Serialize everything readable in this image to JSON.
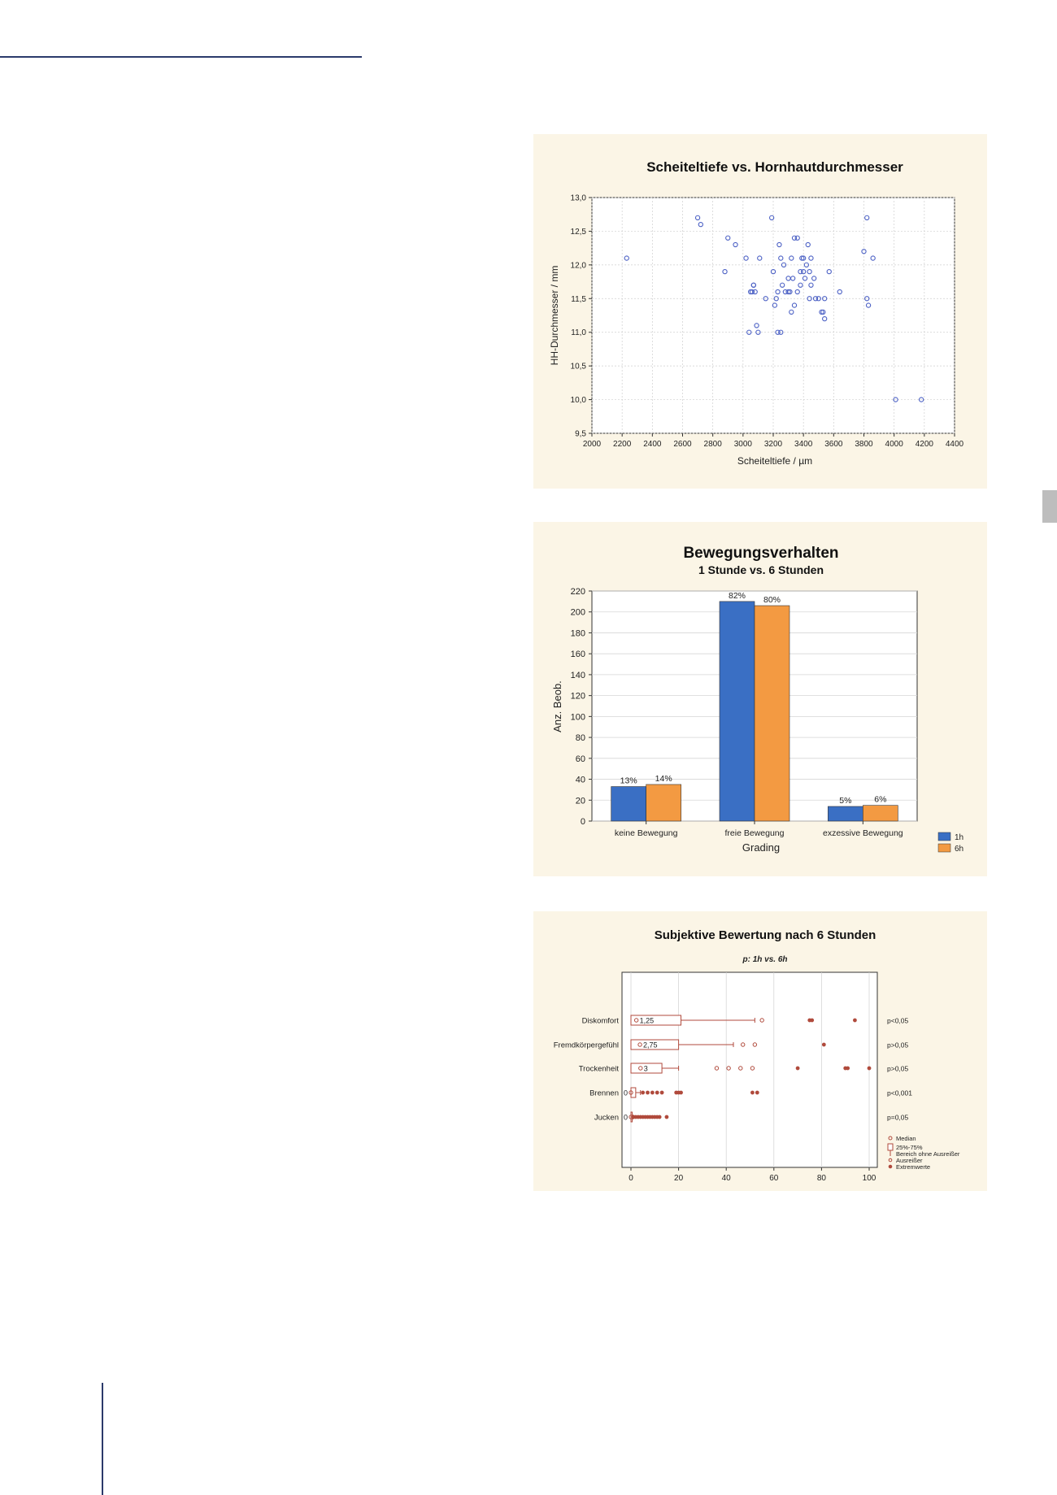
{
  "chart_data": [
    {
      "type": "scatter",
      "title": "Scheiteltiefe vs. Hornhautdurchmesser",
      "xlabel": "Scheiteltiefe / µm",
      "ylabel": "HH-Durchmesser / mm",
      "xlim": [
        2000,
        4400
      ],
      "ylim": [
        9.5,
        13.0
      ],
      "xticks": [
        "2000",
        "2200",
        "2400",
        "2600",
        "2800",
        "3000",
        "3200",
        "3400",
        "3600",
        "3800",
        "4000",
        "4200",
        "4400"
      ],
      "yticks": [
        "9,5",
        "10,0",
        "10,5",
        "11,0",
        "11,5",
        "12,0",
        "12,5",
        "13,0"
      ],
      "grid": true,
      "marker_color": "#4a5fc4",
      "points": [
        [
          2230,
          12.1
        ],
        [
          2700,
          12.7
        ],
        [
          2720,
          12.6
        ],
        [
          2900,
          12.4
        ],
        [
          2880,
          11.9
        ],
        [
          2950,
          12.3
        ],
        [
          3020,
          12.1
        ],
        [
          3040,
          11.0
        ],
        [
          3050,
          11.6
        ],
        [
          3060,
          11.6
        ],
        [
          3070,
          11.7
        ],
        [
          3080,
          11.6
        ],
        [
          3070,
          11.7
        ],
        [
          3090,
          11.1
        ],
        [
          3100,
          11.0
        ],
        [
          3110,
          12.1
        ],
        [
          3150,
          11.5
        ],
        [
          3190,
          12.7
        ],
        [
          3200,
          11.9
        ],
        [
          3210,
          11.4
        ],
        [
          3220,
          11.5
        ],
        [
          3230,
          11.6
        ],
        [
          3230,
          11.0
        ],
        [
          3240,
          12.3
        ],
        [
          3250,
          11.0
        ],
        [
          3250,
          12.1
        ],
        [
          3260,
          11.7
        ],
        [
          3270,
          12.0
        ],
        [
          3280,
          11.6
        ],
        [
          3300,
          11.6
        ],
        [
          3300,
          11.8
        ],
        [
          3310,
          11.6
        ],
        [
          3320,
          11.3
        ],
        [
          3320,
          12.1
        ],
        [
          3330,
          11.8
        ],
        [
          3340,
          11.4
        ],
        [
          3340,
          12.4
        ],
        [
          3360,
          12.4
        ],
        [
          3360,
          11.6
        ],
        [
          3380,
          11.9
        ],
        [
          3380,
          11.7
        ],
        [
          3390,
          12.1
        ],
        [
          3400,
          12.1
        ],
        [
          3400,
          11.9
        ],
        [
          3410,
          11.8
        ],
        [
          3420,
          12.0
        ],
        [
          3430,
          12.3
        ],
        [
          3440,
          11.9
        ],
        [
          3440,
          11.5
        ],
        [
          3450,
          11.7
        ],
        [
          3450,
          12.1
        ],
        [
          3470,
          11.8
        ],
        [
          3480,
          11.5
        ],
        [
          3500,
          11.5
        ],
        [
          3520,
          11.3
        ],
        [
          3530,
          11.3
        ],
        [
          3540,
          11.2
        ],
        [
          3540,
          11.5
        ],
        [
          3570,
          11.9
        ],
        [
          3640,
          11.6
        ],
        [
          3800,
          12.2
        ],
        [
          3820,
          12.7
        ],
        [
          3820,
          11.5
        ],
        [
          3830,
          11.4
        ],
        [
          3860,
          12.1
        ],
        [
          4010,
          10.0
        ],
        [
          4180,
          10.0
        ]
      ]
    },
    {
      "type": "bar",
      "title": "Bewegungsverhalten",
      "subtitle": "1 Stunde vs. 6 Stunden",
      "xlabel": "Grading",
      "ylabel": "Anz. Beob.",
      "ylim": [
        0,
        220
      ],
      "yticks": [
        "0",
        "20",
        "40",
        "60",
        "80",
        "100",
        "120",
        "140",
        "160",
        "180",
        "200",
        "220"
      ],
      "categories": [
        "keine Bewegung",
        "freie Bewegung",
        "exzessive Bewegung"
      ],
      "series": [
        {
          "name": "1h",
          "values": [
            33,
            210,
            14
          ],
          "labels": [
            "13%",
            "82%",
            "5%"
          ],
          "color": "#3a6fc4"
        },
        {
          "name": "6h",
          "values": [
            35,
            206,
            15
          ],
          "labels": [
            "14%",
            "80%",
            "6%"
          ],
          "color": "#f39a42"
        }
      ],
      "legend_position": "bottom-right",
      "grid": true
    },
    {
      "type": "box",
      "title": "Subjektive Bewertung nach 6 Stunden",
      "subtitle": "p: 1h vs. 6h",
      "xlim": [
        0,
        100
      ],
      "xticks": [
        "0",
        "20",
        "40",
        "60",
        "80",
        "100"
      ],
      "color": "#b04a3c",
      "categories": [
        "Diskomfort",
        "Fremdkörpergefühl",
        "Trockenheit",
        "Brennen",
        "Jucken"
      ],
      "p_values": [
        "p<0,05",
        "p>0,05",
        "p>0,05",
        "p<0,001",
        "p=0,05"
      ],
      "median_labels": [
        "1,25",
        "2,75",
        "3",
        "0",
        "0"
      ],
      "boxes": [
        {
          "median": 1.25,
          "q1": 0,
          "q3": 21,
          "whisker_low": 0,
          "whisker_high": 52,
          "outliers": [
            55
          ],
          "extremes": [
            75,
            76,
            94
          ]
        },
        {
          "median": 2.75,
          "q1": 0,
          "q3": 20,
          "whisker_low": 0,
          "whisker_high": 43,
          "outliers": [
            47,
            52
          ],
          "extremes": [
            81
          ]
        },
        {
          "median": 3,
          "q1": 0,
          "q3": 13,
          "whisker_low": 0,
          "whisker_high": 20,
          "outliers": [
            36,
            41,
            46,
            51
          ],
          "extremes": [
            70,
            90,
            91,
            100
          ]
        },
        {
          "median": 0,
          "q1": 0,
          "q3": 2,
          "whisker_low": 0,
          "whisker_high": 4,
          "outliers": [],
          "extremes": [
            5,
            7,
            9,
            11,
            13,
            19,
            20,
            21,
            51,
            53
          ]
        },
        {
          "median": 0,
          "q1": 0,
          "q3": 0,
          "whisker_low": 0,
          "whisker_high": 1,
          "outliers": [],
          "extremes": [
            1,
            2,
            3,
            4,
            5,
            6,
            7,
            8,
            9,
            10,
            11,
            12,
            15
          ]
        }
      ],
      "legend": [
        "Median",
        "25%-75%",
        "Bereich ohne Ausreißer",
        "Ausreißer",
        "Extremwerte"
      ],
      "legend_position": "bottom-right"
    }
  ]
}
